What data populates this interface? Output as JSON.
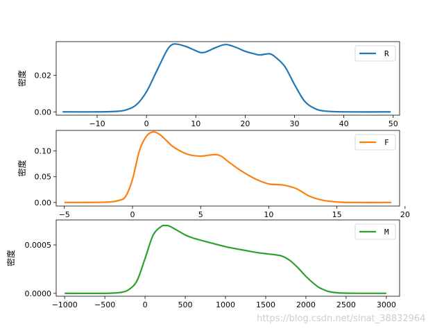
{
  "watermark": "https://blog.csdn.net/sinat_38832964",
  "chart_data": [
    {
      "type": "line",
      "title": "",
      "xlabel": "",
      "ylabel": "密度",
      "xlim": [
        -18.3,
        51.3
      ],
      "ylim": [
        -0.0018,
        0.0385
      ],
      "xticks": [
        -10,
        0,
        10,
        20,
        30,
        40,
        50
      ],
      "yticks": [
        0.0,
        0.02
      ],
      "ytick_labels": [
        "0.00",
        "0.02"
      ],
      "legend": "upper right",
      "grid": false,
      "series": [
        {
          "name": "R",
          "color": "#1f77b4",
          "x": [
            -17,
            -10,
            -6,
            -4,
            -2,
            0,
            2,
            4,
            5,
            6,
            8,
            10,
            11,
            12,
            14,
            16,
            18,
            20,
            22,
            23,
            24,
            25,
            26,
            28,
            30,
            32,
            34,
            36,
            40,
            49.5
          ],
          "y": [
            0,
            0,
            0.0003,
            0.0012,
            0.004,
            0.011,
            0.022,
            0.033,
            0.0365,
            0.0372,
            0.0358,
            0.0335,
            0.0325,
            0.0328,
            0.0352,
            0.0369,
            0.0355,
            0.0332,
            0.0317,
            0.0312,
            0.0316,
            0.0318,
            0.0303,
            0.025,
            0.015,
            0.006,
            0.002,
            0.0005,
            0,
            0
          ]
        }
      ]
    },
    {
      "type": "line",
      "title": "",
      "xlabel": "",
      "ylabel": "密度",
      "xlim": [
        -5.6,
        19.6
      ],
      "ylim": [
        -0.007,
        0.14
      ],
      "xticks": [
        -5,
        0,
        5,
        10,
        15,
        20
      ],
      "yticks": [
        0.0,
        0.05,
        0.1
      ],
      "ytick_labels": [
        "0.00",
        "0.05",
        "0.10"
      ],
      "legend": "upper right",
      "grid": false,
      "series": [
        {
          "name": "F",
          "color": "#ff7f0e",
          "x": [
            -5,
            -2,
            -1,
            -0.5,
            0,
            0.5,
            1,
            1.5,
            2,
            2.5,
            3,
            4,
            5,
            6,
            6.5,
            7,
            8,
            9,
            10,
            11,
            12,
            13,
            14,
            15,
            16,
            19
          ],
          "y": [
            0,
            0.0005,
            0.004,
            0.012,
            0.045,
            0.1,
            0.128,
            0.137,
            0.132,
            0.12,
            0.108,
            0.094,
            0.09,
            0.093,
            0.09,
            0.08,
            0.061,
            0.046,
            0.036,
            0.034,
            0.027,
            0.012,
            0.004,
            0.001,
            0,
            0
          ]
        }
      ]
    },
    {
      "type": "line",
      "title": "",
      "xlabel": "",
      "ylabel": "密度",
      "xlim": [
        -1105,
        3165
      ],
      "ylim": [
        -3e-05,
        0.000758
      ],
      "xticks": [
        -1000,
        -500,
        0,
        500,
        1000,
        1500,
        2000,
        2500,
        3000
      ],
      "yticks": [
        0,
        0.0005
      ],
      "ytick_labels": [
        "0.0000",
        "0.0005"
      ],
      "legend": "upper right",
      "grid": false,
      "series": [
        {
          "name": "M",
          "color": "#2ca02c",
          "x": [
            -1000,
            -500,
            -300,
            -200,
            -100,
            0,
            100,
            200,
            250,
            300,
            400,
            500,
            600,
            800,
            1000,
            1200,
            1400,
            1600,
            1700,
            1800,
            1900,
            2000,
            2100,
            2200,
            2400,
            3000
          ],
          "y": [
            0,
            0,
            1e-05,
            4e-05,
            0.00013,
            0.00036,
            0.0006,
            0.00069,
            0.0007,
            0.000695,
            0.00065,
            0.000602,
            0.00057,
            0.000525,
            0.000482,
            0.00045,
            0.00042,
            0.0004,
            0.000385,
            0.00034,
            0.000265,
            0.000175,
            0.0001,
            4.5e-05,
            5e-06,
            0
          ]
        }
      ]
    }
  ]
}
